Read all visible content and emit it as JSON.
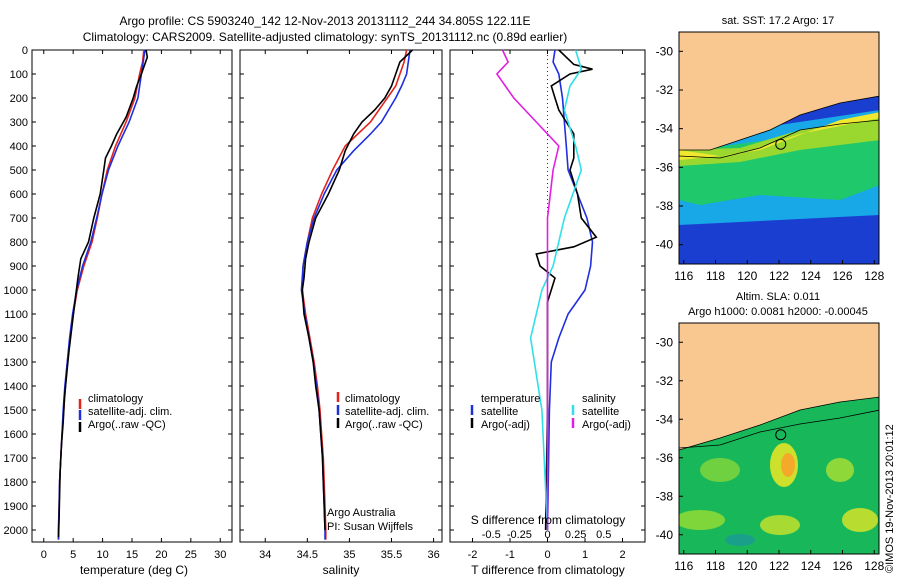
{
  "header": {
    "line1": "Argo profile: CS 5903240_142 12-Nov-2013 20131112_244 34.805S 122.11E",
    "line2": "Climatology: CARS2009. Satellite-adjusted climatology: synTS_20131112.nc (0.89d earlier)"
  },
  "colors": {
    "climatology": "#e0251f",
    "satellite_adj": "#1f2fe0",
    "argo": "#000000",
    "satellite_cyan": "#2fe0e8",
    "argo_adj_magenta": "#e020e0"
  },
  "chart_data": [
    {
      "id": "temperature",
      "type": "line",
      "xlabel": "temperature (deg C)",
      "xlim": [
        -2,
        32
      ],
      "xticks": [
        0,
        5,
        10,
        15,
        20,
        25,
        30
      ],
      "ylim": [
        0,
        2050
      ],
      "yticks": [
        0,
        100,
        200,
        300,
        400,
        500,
        600,
        700,
        800,
        900,
        1000,
        1100,
        1200,
        1300,
        1400,
        1500,
        1600,
        1700,
        1800,
        1900,
        2000
      ],
      "y_reversed": true,
      "legend": [
        "climatology",
        "satellite-adj. clim.",
        "Argo(..raw -QC)"
      ],
      "series": [
        {
          "name": "climatology",
          "color": "#e0251f",
          "points": [
            [
              17,
              0
            ],
            [
              16.8,
              50
            ],
            [
              16.3,
              100
            ],
            [
              15.5,
              200
            ],
            [
              14,
              300
            ],
            [
              12.2,
              400
            ],
            [
              10.8,
              500
            ],
            [
              9.9,
              600
            ],
            [
              9.1,
              700
            ],
            [
              8.2,
              800
            ],
            [
              6.8,
              900
            ],
            [
              5.7,
              1000
            ],
            [
              5,
              1100
            ],
            [
              4.5,
              1200
            ],
            [
              4,
              1300
            ],
            [
              3.7,
              1400
            ],
            [
              3.4,
              1500
            ],
            [
              3.1,
              1600
            ],
            [
              2.9,
              1700
            ],
            [
              2.7,
              1800
            ],
            [
              2.6,
              1900
            ],
            [
              2.5,
              2000
            ],
            [
              2.5,
              2040
            ]
          ]
        },
        {
          "name": "satellite-adj. clim.",
          "color": "#1f2fe0",
          "points": [
            [
              17.2,
              0
            ],
            [
              16.9,
              50
            ],
            [
              16.6,
              100
            ],
            [
              16,
              200
            ],
            [
              14.5,
              300
            ],
            [
              12.6,
              400
            ],
            [
              11,
              500
            ],
            [
              9.9,
              600
            ],
            [
              9,
              700
            ],
            [
              8,
              800
            ],
            [
              6.6,
              900
            ],
            [
              5.6,
              1000
            ],
            [
              4.9,
              1100
            ],
            [
              4.4,
              1200
            ],
            [
              4,
              1300
            ],
            [
              3.6,
              1400
            ],
            [
              3.3,
              1500
            ],
            [
              3.1,
              1600
            ],
            [
              2.9,
              1700
            ],
            [
              2.7,
              1800
            ],
            [
              2.6,
              1900
            ],
            [
              2.5,
              2000
            ],
            [
              2.5,
              2040
            ]
          ]
        },
        {
          "name": "Argo(..raw -QC)",
          "color": "#000000",
          "points": [
            [
              17.4,
              0
            ],
            [
              17.6,
              30
            ],
            [
              16.6,
              100
            ],
            [
              15.8,
              150
            ],
            [
              15.2,
              200
            ],
            [
              14,
              280
            ],
            [
              12.4,
              350
            ],
            [
              11.5,
              400
            ],
            [
              10.5,
              450
            ],
            [
              10.2,
              500
            ],
            [
              9.6,
              600
            ],
            [
              8.5,
              700
            ],
            [
              7.6,
              800
            ],
            [
              6.3,
              870
            ],
            [
              5.8,
              950
            ],
            [
              5.3,
              1050
            ],
            [
              4.8,
              1150
            ],
            [
              4.3,
              1250
            ],
            [
              3.9,
              1350
            ],
            [
              3.5,
              1450
            ],
            [
              3.3,
              1550
            ],
            [
              3,
              1650
            ],
            [
              2.8,
              1750
            ],
            [
              2.7,
              1850
            ],
            [
              2.6,
              1950
            ],
            [
              2.5,
              2030
            ]
          ]
        }
      ]
    },
    {
      "id": "salinity",
      "type": "line",
      "xlabel": "salinity",
      "xlim": [
        33.7,
        36.1
      ],
      "xticks": [
        34,
        34.5,
        35,
        35.5,
        36
      ],
      "ylim": [
        0,
        2050
      ],
      "y_reversed": true,
      "legend": [
        "climatology",
        "satellite-adj. clim.",
        "Argo(..raw -QC)"
      ],
      "annotation": [
        "Argo Australia",
        "PI: Susan Wijffels"
      ],
      "series": [
        {
          "name": "climatology",
          "color": "#e0251f",
          "points": [
            [
              35.68,
              0
            ],
            [
              35.65,
              50
            ],
            [
              35.6,
              100
            ],
            [
              35.55,
              150
            ],
            [
              35.45,
              200
            ],
            [
              35.25,
              300
            ],
            [
              35.1,
              350
            ],
            [
              34.95,
              400
            ],
            [
              34.8,
              500
            ],
            [
              34.67,
              600
            ],
            [
              34.56,
              700
            ],
            [
              34.5,
              800
            ],
            [
              34.45,
              900
            ],
            [
              34.44,
              1000
            ],
            [
              34.48,
              1100
            ],
            [
              34.53,
              1200
            ],
            [
              34.58,
              1300
            ],
            [
              34.62,
              1400
            ],
            [
              34.65,
              1500
            ],
            [
              34.67,
              1600
            ],
            [
              34.69,
              1700
            ],
            [
              34.7,
              1800
            ],
            [
              34.71,
              1900
            ],
            [
              34.72,
              2000
            ],
            [
              34.72,
              2040
            ]
          ]
        },
        {
          "name": "satellite-adj. clim.",
          "color": "#1f2fe0",
          "points": [
            [
              35.72,
              0
            ],
            [
              35.7,
              50
            ],
            [
              35.68,
              100
            ],
            [
              35.62,
              150
            ],
            [
              35.55,
              200
            ],
            [
              35.38,
              300
            ],
            [
              35.25,
              350
            ],
            [
              35.05,
              420
            ],
            [
              34.85,
              500
            ],
            [
              34.7,
              600
            ],
            [
              34.58,
              700
            ],
            [
              34.5,
              800
            ],
            [
              34.45,
              900
            ],
            [
              34.43,
              1000
            ],
            [
              34.47,
              1100
            ],
            [
              34.52,
              1200
            ],
            [
              34.57,
              1300
            ],
            [
              34.61,
              1400
            ],
            [
              34.64,
              1500
            ],
            [
              34.66,
              1600
            ],
            [
              34.68,
              1700
            ],
            [
              34.69,
              1800
            ],
            [
              34.7,
              1900
            ],
            [
              34.71,
              2000
            ],
            [
              34.71,
              2040
            ]
          ]
        },
        {
          "name": "Argo(..raw -QC)",
          "color": "#000000",
          "points": [
            [
              35.75,
              0
            ],
            [
              35.6,
              50
            ],
            [
              35.55,
              100
            ],
            [
              35.5,
              150
            ],
            [
              35.42,
              200
            ],
            [
              35.3,
              250
            ],
            [
              35.15,
              300
            ],
            [
              35.05,
              350
            ],
            [
              34.95,
              420
            ],
            [
              34.88,
              500
            ],
            [
              34.75,
              600
            ],
            [
              34.6,
              700
            ],
            [
              34.52,
              800
            ],
            [
              34.48,
              870
            ],
            [
              34.46,
              950
            ],
            [
              34.44,
              1000
            ],
            [
              34.46,
              1100
            ],
            [
              34.52,
              1200
            ],
            [
              34.57,
              1300
            ],
            [
              34.6,
              1400
            ],
            [
              34.64,
              1500
            ],
            [
              34.66,
              1600
            ],
            [
              34.68,
              1700
            ],
            [
              34.69,
              1800
            ],
            [
              34.7,
              1900
            ],
            [
              34.71,
              2000
            ]
          ]
        }
      ]
    },
    {
      "id": "difference",
      "type": "line",
      "xlabel": "T difference from climatology",
      "xlabel_top": "S difference from climatology",
      "xlim": [
        -2.6,
        2.6
      ],
      "xticks": [
        -2,
        -1,
        0,
        1,
        2
      ],
      "xtick_labels": [
        "-2",
        "-1",
        "0",
        "1",
        "2"
      ],
      "xticks_salinity": [
        -0.5,
        -0.25,
        0,
        0.25,
        0.5
      ],
      "xtick_labels_salinity": [
        "-0.5",
        "-0.25",
        "0",
        "0.25",
        "0.5"
      ],
      "ylim": [
        0,
        2050
      ],
      "y_reversed": true,
      "legend_temperature_title": "temperature",
      "legend_salinity_title": "salinity",
      "legend_temperature": [
        "satellite",
        "Argo(-adj)"
      ],
      "legend_salinity": [
        "satellite",
        "Argo(-adj)"
      ],
      "series": [
        {
          "name": "temperature satellite",
          "color": "#1f2fe0",
          "points": [
            [
              0.2,
              0
            ],
            [
              0.15,
              50
            ],
            [
              0.3,
              100
            ],
            [
              0.4,
              200
            ],
            [
              0.45,
              300
            ],
            [
              0.5,
              400
            ],
            [
              0.55,
              500
            ],
            [
              0.8,
              600
            ],
            [
              1.05,
              700
            ],
            [
              1.2,
              800
            ],
            [
              1.15,
              900
            ],
            [
              1,
              1000
            ],
            [
              0.55,
              1100
            ],
            [
              0.3,
              1200
            ],
            [
              0.1,
              1300
            ],
            [
              0.05,
              1500
            ],
            [
              0,
              2000
            ]
          ]
        },
        {
          "name": "temperature Argo(-adj)",
          "color": "#000000",
          "points": [
            [
              0.3,
              0
            ],
            [
              0.7,
              60
            ],
            [
              1.2,
              80
            ],
            [
              0.6,
              100
            ],
            [
              0.1,
              150
            ],
            [
              0.2,
              200
            ],
            [
              0.3,
              250
            ],
            [
              0.5,
              300
            ],
            [
              0.7,
              350
            ],
            [
              0.7,
              450
            ],
            [
              0.6,
              500
            ],
            [
              0.8,
              600
            ],
            [
              0.9,
              700
            ],
            [
              1.3,
              780
            ],
            [
              0.7,
              820
            ],
            [
              -0.3,
              850
            ],
            [
              -0.2,
              900
            ],
            [
              0.2,
              950
            ],
            [
              0,
              1050
            ],
            [
              0,
              1500
            ],
            [
              -0.05,
              2000
            ]
          ]
        },
        {
          "name": "salinity satellite",
          "color": "#2fe0e8",
          "points": [
            [
              0.25,
              0
            ],
            [
              0.3,
              80
            ],
            [
              0.2,
              150
            ],
            [
              0.15,
              250
            ],
            [
              0.25,
              400
            ],
            [
              0.3,
              500
            ],
            [
              0.15,
              700
            ],
            [
              0.05,
              900
            ],
            [
              -0.05,
              1000
            ],
            [
              -0.1,
              1100
            ],
            [
              -0.15,
              1200
            ],
            [
              -0.05,
              1500
            ],
            [
              0,
              2000
            ]
          ]
        },
        {
          "name": "salinity Argo(-adj)",
          "color": "#e020e0",
          "points": [
            [
              -0.4,
              0
            ],
            [
              -0.35,
              50
            ],
            [
              -0.45,
              100
            ],
            [
              -0.3,
              200
            ],
            [
              -0.1,
              300
            ],
            [
              0.1,
              400
            ],
            [
              0.05,
              500
            ],
            [
              0,
              700
            ],
            [
              0,
              1000
            ],
            [
              0,
              2000
            ]
          ]
        }
      ]
    },
    {
      "id": "sst-map",
      "type": "heatmap",
      "title": "sat. SST: 17.2 Argo: 17",
      "xticks": [
        116,
        118,
        120,
        122,
        124,
        126,
        128
      ],
      "yticks": [
        -30,
        -32,
        -34,
        -36,
        -38,
        -40
      ],
      "xlim": [
        115.7,
        128.3
      ],
      "ylim": [
        -41,
        -29
      ],
      "argo_marker": [
        122.11,
        -34.805
      ]
    },
    {
      "id": "sla-map",
      "type": "heatmap",
      "title_line1": "Altim. SLA: 0.011",
      "title_line2": "Argo h1000: 0.0081 h2000: -0.00045",
      "xticks": [
        116,
        118,
        120,
        122,
        124,
        126,
        128
      ],
      "yticks": [
        -30,
        -32,
        -34,
        -36,
        -38,
        -40
      ],
      "xlim": [
        115.7,
        128.3
      ],
      "ylim": [
        -41,
        -29
      ],
      "argo_marker": [
        122.11,
        -34.805
      ]
    }
  ],
  "watermark": "©IMOS 19-Nov-2013 20:01:12"
}
